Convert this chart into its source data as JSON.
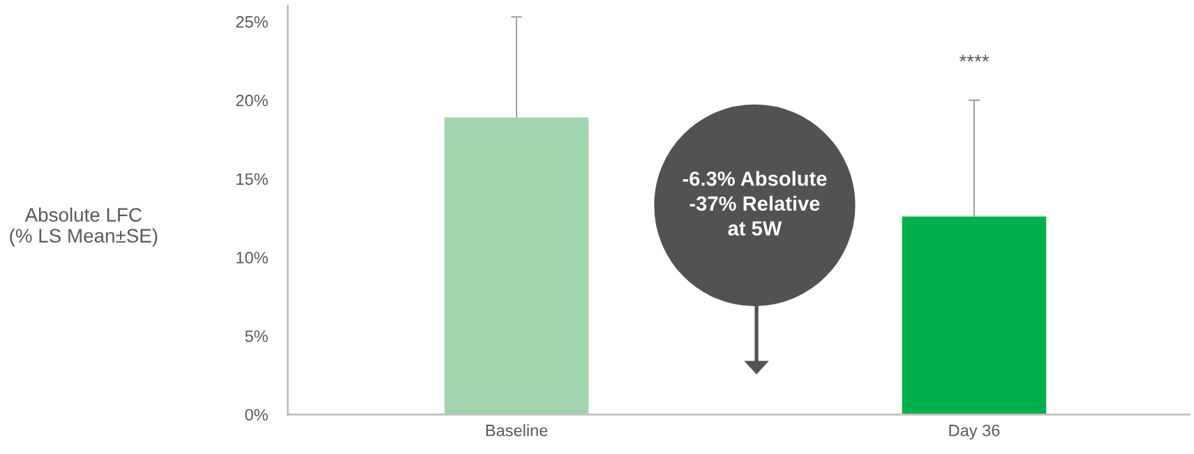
{
  "chart_data": {
    "type": "bar",
    "ylabel": "Absolute LFC\n(% LS Mean±SE)",
    "categories": [
      "Baseline",
      "Day 36"
    ],
    "values": [
      18.9,
      12.6
    ],
    "colors": [
      "#a2d4ad",
      "#00b04a"
    ],
    "errors": [
      [
        18.9,
        25.3
      ],
      [
        12.6,
        20.0
      ]
    ],
    "ylim": [
      0,
      26
    ],
    "yticks": [
      {
        "value": 0,
        "label": "0%"
      },
      {
        "value": 5,
        "label": "5%"
      },
      {
        "value": 10,
        "label": "10%"
      },
      {
        "value": 15,
        "label": "15%"
      },
      {
        "value": 20,
        "label": "20%"
      },
      {
        "value": 25,
        "label": "25%"
      }
    ],
    "grid": false,
    "annotations": [
      "-6.3% Absolute\n-37% Relative\nat 5W",
      "****"
    ]
  }
}
